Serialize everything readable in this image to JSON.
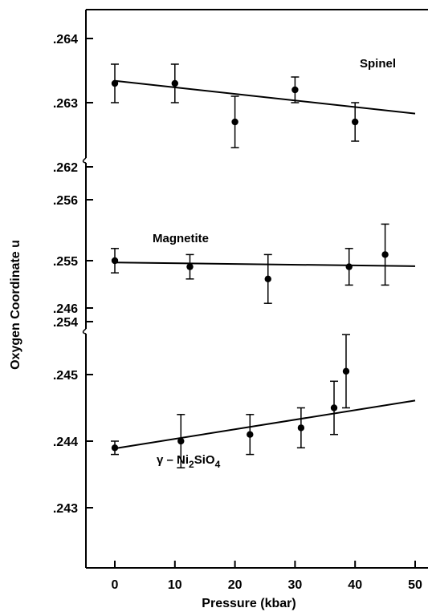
{
  "chart_data": {
    "type": "scatter",
    "xlabel": "Pressure (kbar)",
    "ylabel": "Oxygen Coordinate u",
    "xlim": [
      -5,
      50
    ],
    "xticks": [
      0,
      10,
      20,
      30,
      40,
      50
    ],
    "grid": false,
    "legend": "none",
    "panels": [
      {
        "name": "Spinel",
        "label_parts": {
          "base": "Spinel"
        },
        "ylim": [
          0.2618,
          0.2642
        ],
        "yticks": [
          0.262,
          0.263,
          0.264
        ],
        "ytick_labels": [
          ".262",
          ".263",
          ".264"
        ],
        "points": [
          {
            "x": 0,
            "y": 0.2633,
            "err": 0.0003
          },
          {
            "x": 10,
            "y": 0.2633,
            "err": 0.0003
          },
          {
            "x": 20,
            "y": 0.2627,
            "err": 0.0004
          },
          {
            "x": 30,
            "y": 0.2632,
            "err": 0.0002
          },
          {
            "x": 40,
            "y": 0.2627,
            "err": 0.0003
          }
        ],
        "fit": {
          "x": [
            0,
            50
          ],
          "y": [
            0.26334,
            0.26283
          ]
        }
      },
      {
        "name": "Magnetite",
        "label_parts": {
          "base": "Magnetite"
        },
        "ylim": [
          0.2538,
          0.2562
        ],
        "yticks": [
          0.254,
          0.255,
          0.256
        ],
        "ytick_labels": [
          ".254",
          ".255",
          ".256"
        ],
        "points": [
          {
            "x": 0,
            "y": 0.255,
            "err": 0.0002
          },
          {
            "x": 12.5,
            "y": 0.2549,
            "err": 0.0002
          },
          {
            "x": 25.5,
            "y": 0.2547,
            "err": 0.0004
          },
          {
            "x": 39,
            "y": 0.2549,
            "err": 0.0003
          },
          {
            "x": 45,
            "y": 0.2551,
            "err": 0.0005
          }
        ],
        "fit": {
          "x": [
            0,
            50
          ],
          "y": [
            0.25497,
            0.25491
          ]
        }
      },
      {
        "name": "γ – Ni2SiO4",
        "label_parts": {
          "prefix": "γ – Ni",
          "sub1": "2",
          "mid": "SiO",
          "sub2": "4"
        },
        "ylim": [
          0.2426,
          0.2462
        ],
        "yticks": [
          0.243,
          0.244,
          0.245,
          0.246
        ],
        "ytick_labels": [
          ".243",
          ".244",
          ".245",
          ".246"
        ],
        "points": [
          {
            "x": 0,
            "y": 0.2439,
            "err": 0.0001
          },
          {
            "x": 11,
            "y": 0.244,
            "err": 0.0004
          },
          {
            "x": 22.5,
            "y": 0.2441,
            "err": 0.0003
          },
          {
            "x": 31,
            "y": 0.2442,
            "err": 0.0003
          },
          {
            "x": 36.5,
            "y": 0.2445,
            "err": 0.0004
          },
          {
            "x": 38.5,
            "y": 0.24505,
            "err": 0.00055
          }
        ],
        "fit": {
          "x": [
            0,
            50
          ],
          "y": [
            0.24389,
            0.24461
          ]
        }
      }
    ]
  }
}
